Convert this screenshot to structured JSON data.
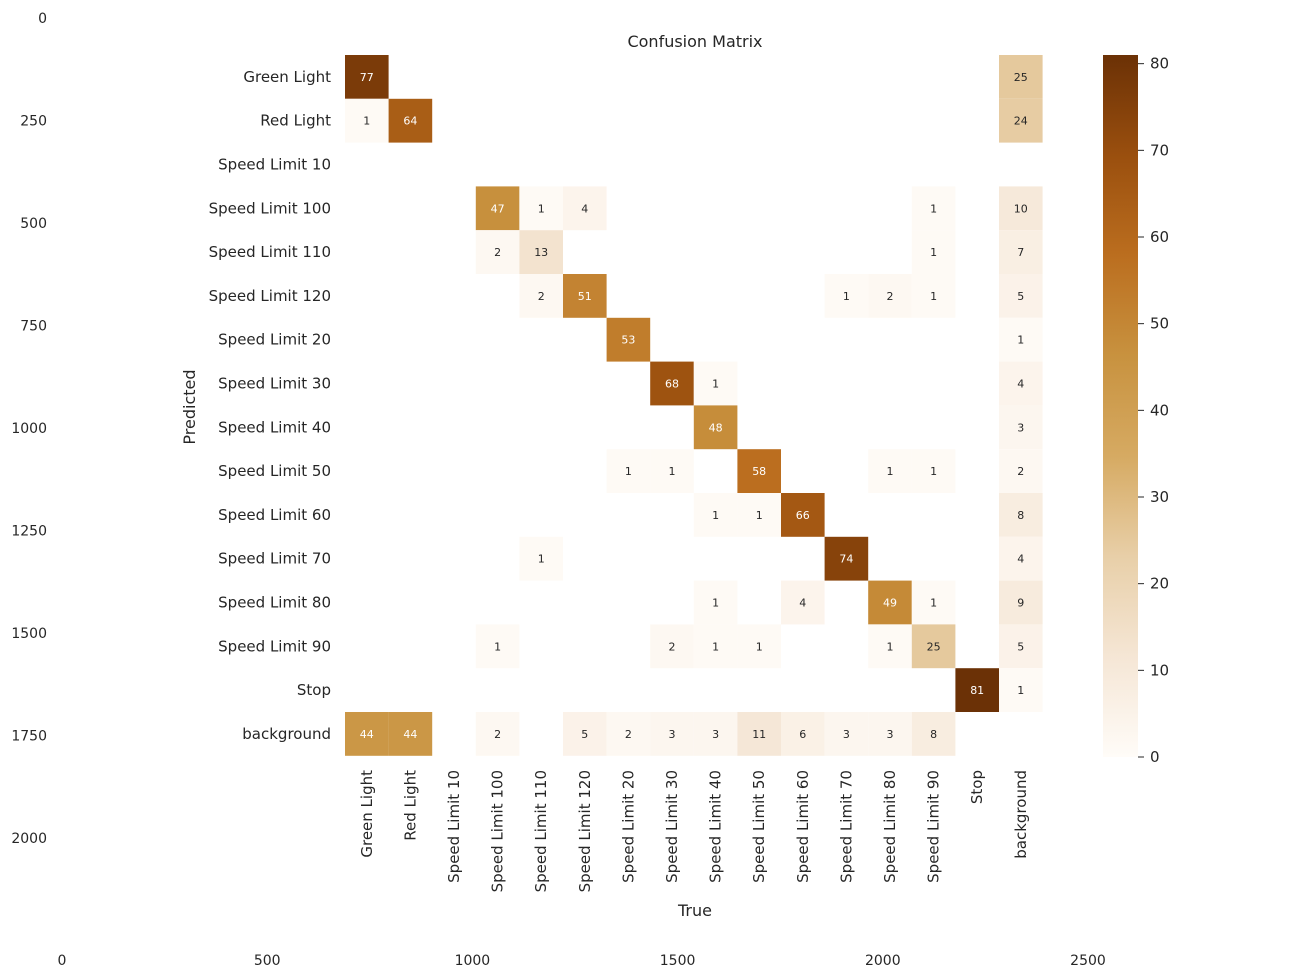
{
  "outer_axes": {
    "x_ticks": [
      "0",
      "500",
      "1000",
      "1500",
      "2000",
      "2500"
    ],
    "y_ticks": [
      "0",
      "250",
      "500",
      "750",
      "1000",
      "1250",
      "1500",
      "1750",
      "2000"
    ]
  },
  "chart_data": {
    "type": "heatmap",
    "title": "Confusion Matrix",
    "xlabel": "True",
    "ylabel": "Predicted",
    "categories": [
      "Green Light",
      "Red Light",
      "Speed Limit 10",
      "Speed Limit 100",
      "Speed Limit 110",
      "Speed Limit 120",
      "Speed Limit 20",
      "Speed Limit 30",
      "Speed Limit 40",
      "Speed Limit 50",
      "Speed Limit 60",
      "Speed Limit 70",
      "Speed Limit 80",
      "Speed Limit 90",
      "Stop",
      "background"
    ],
    "matrix": [
      [
        77,
        0,
        0,
        0,
        0,
        0,
        0,
        0,
        0,
        0,
        0,
        0,
        0,
        0,
        0,
        25
      ],
      [
        1,
        64,
        0,
        0,
        0,
        0,
        0,
        0,
        0,
        0,
        0,
        0,
        0,
        0,
        0,
        24
      ],
      [
        0,
        0,
        0,
        0,
        0,
        0,
        0,
        0,
        0,
        0,
        0,
        0,
        0,
        0,
        0,
        0
      ],
      [
        0,
        0,
        0,
        47,
        1,
        4,
        0,
        0,
        0,
        0,
        0,
        0,
        0,
        1,
        0,
        10
      ],
      [
        0,
        0,
        0,
        2,
        13,
        0,
        0,
        0,
        0,
        0,
        0,
        0,
        0,
        1,
        0,
        7
      ],
      [
        0,
        0,
        0,
        0,
        2,
        51,
        0,
        0,
        0,
        0,
        0,
        1,
        2,
        1,
        0,
        5
      ],
      [
        0,
        0,
        0,
        0,
        0,
        0,
        53,
        0,
        0,
        0,
        0,
        0,
        0,
        0,
        0,
        1
      ],
      [
        0,
        0,
        0,
        0,
        0,
        0,
        0,
        68,
        1,
        0,
        0,
        0,
        0,
        0,
        0,
        4
      ],
      [
        0,
        0,
        0,
        0,
        0,
        0,
        0,
        0,
        48,
        0,
        0,
        0,
        0,
        0,
        0,
        3
      ],
      [
        0,
        0,
        0,
        0,
        0,
        0,
        1,
        1,
        0,
        58,
        0,
        0,
        1,
        1,
        0,
        2
      ],
      [
        0,
        0,
        0,
        0,
        0,
        0,
        0,
        0,
        1,
        1,
        66,
        0,
        0,
        0,
        0,
        8
      ],
      [
        0,
        0,
        0,
        0,
        1,
        0,
        0,
        0,
        0,
        0,
        0,
        74,
        0,
        0,
        0,
        4
      ],
      [
        0,
        0,
        0,
        0,
        0,
        0,
        0,
        0,
        1,
        0,
        4,
        0,
        49,
        1,
        0,
        9
      ],
      [
        0,
        0,
        0,
        1,
        0,
        0,
        0,
        2,
        1,
        1,
        0,
        0,
        1,
        25,
        0,
        5
      ],
      [
        0,
        0,
        0,
        0,
        0,
        0,
        0,
        0,
        0,
        0,
        0,
        0,
        0,
        0,
        81,
        1
      ],
      [
        44,
        44,
        0,
        2,
        0,
        5,
        2,
        3,
        3,
        11,
        6,
        3,
        3,
        8,
        0,
        0
      ]
    ],
    "zero_cells_hidden": true,
    "colorbar": {
      "min": 0,
      "max": 81,
      "ticks": [
        0,
        10,
        20,
        30,
        40,
        50,
        60,
        70,
        80
      ]
    },
    "colormap": [
      "#fffcf8",
      "#f5e6d5",
      "#e8cfa8",
      "#d6aa62",
      "#c8923f",
      "#bb6e1f",
      "#9a4f0e",
      "#6b3106"
    ]
  }
}
